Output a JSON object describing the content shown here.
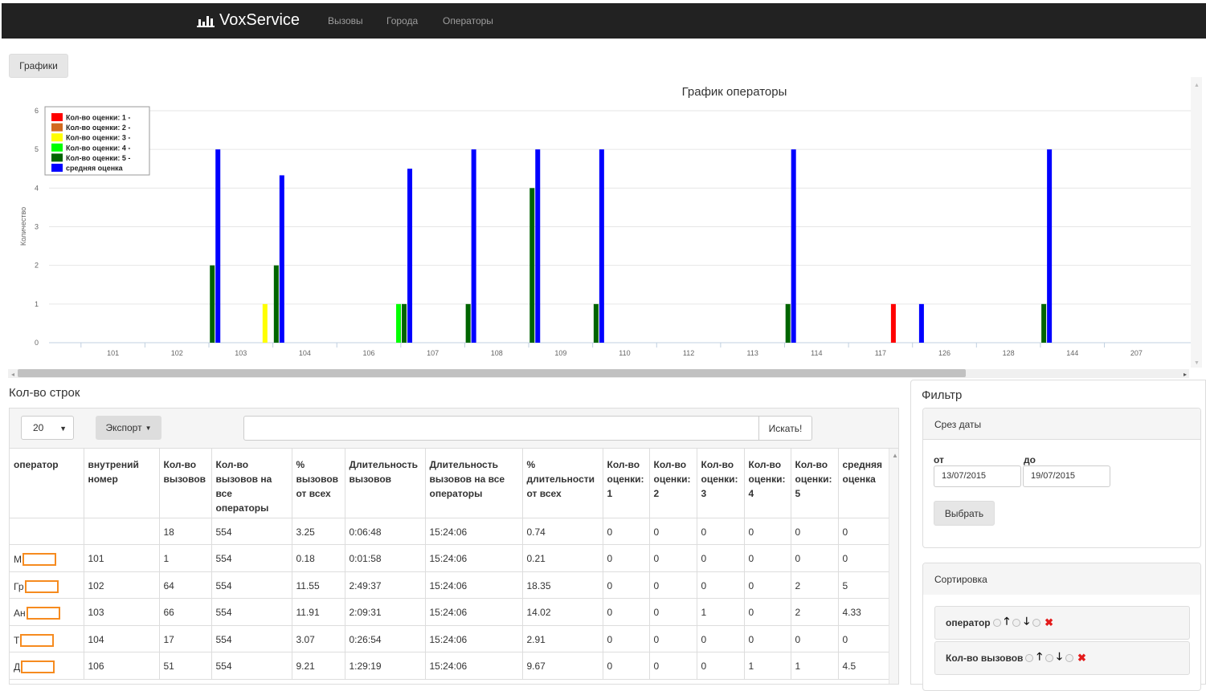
{
  "navbar": {
    "brand": "VoxService",
    "items": [
      "Вызовы",
      "Города",
      "Операторы"
    ]
  },
  "charts_button": "Графики",
  "chart_data": {
    "type": "bar",
    "title": "График операторы",
    "ylabel": "Количество",
    "xlabel": "",
    "ylim": [
      0,
      6
    ],
    "yticks": [
      0,
      1,
      2,
      3,
      4,
      5,
      6
    ],
    "grid": true,
    "legend_position": "top-left",
    "categories": [
      "101",
      "102",
      "103",
      "104",
      "106",
      "107",
      "108",
      "109",
      "110",
      "112",
      "113",
      "114",
      "117",
      "126",
      "128",
      "144",
      "207"
    ],
    "series": [
      {
        "name": "Кол-во оценки: 1 -",
        "color": "#ff0000",
        "values": [
          0,
          0,
          0,
          0,
          0,
          0,
          0,
          0,
          0,
          0,
          0,
          0,
          1,
          0,
          0,
          0,
          0
        ]
      },
      {
        "name": "Кол-во оценки: 2 -",
        "color": "#d2691e",
        "values": [
          0,
          0,
          0,
          0,
          0,
          0,
          0,
          0,
          0,
          0,
          0,
          0,
          0,
          0,
          0,
          0,
          0
        ]
      },
      {
        "name": "Кол-во оценки: 3 -",
        "color": "#ffff00",
        "values": [
          0,
          0,
          1,
          0,
          0,
          0,
          0,
          0,
          0,
          0,
          0,
          0,
          0,
          0,
          0,
          0,
          0
        ]
      },
      {
        "name": "Кол-во оценки: 4 -",
        "color": "#00ff00",
        "values": [
          0,
          0,
          0,
          0,
          1,
          0,
          0,
          0,
          0,
          0,
          0,
          0,
          0,
          0,
          0,
          0,
          0
        ]
      },
      {
        "name": "Кол-во оценки: 5 -",
        "color": "#006400",
        "values": [
          0,
          2,
          2,
          0,
          1,
          1,
          4,
          1,
          0,
          0,
          1,
          0,
          0,
          0,
          1,
          0,
          0
        ]
      },
      {
        "name": "средняя оценка",
        "color": "#0000ff",
        "values": [
          0,
          5,
          4.33,
          0,
          4.5,
          5,
          5,
          5,
          0,
          0,
          5,
          0,
          1,
          0,
          5,
          0,
          0
        ]
      }
    ]
  },
  "rows_title": "Кол-во строк",
  "toolbar": {
    "page_size": "20",
    "export_label": "Экспорт",
    "search_label": "Искать!"
  },
  "table": {
    "headers": [
      "оператор",
      "внутрений номер",
      "Кол-во вызовов",
      "Кол-во вызовов на все операторы",
      "% вызовов от всех",
      "Длительность вызовов",
      "Длительность вызовов на все операторы",
      "% длительности от всех",
      "Кол-во оценки: 1",
      "Кол-во оценки: 2",
      "Кол-во оценки: 3",
      "Кол-во оценки: 4",
      "Кол-во оценки: 5",
      "средняя оценка"
    ],
    "rows": [
      {
        "operator": "",
        "redacted": false,
        "cells": [
          "",
          "18",
          "554",
          "3.25",
          "0:06:48",
          "15:24:06",
          "0.74",
          "0",
          "0",
          "0",
          "0",
          "0",
          "0"
        ]
      },
      {
        "operator": "М",
        "redacted": true,
        "cells": [
          "101",
          "1",
          "554",
          "0.18",
          "0:01:58",
          "15:24:06",
          "0.21",
          "0",
          "0",
          "0",
          "0",
          "0",
          "0"
        ]
      },
      {
        "operator": "Гр",
        "redacted": true,
        "cells": [
          "102",
          "64",
          "554",
          "11.55",
          "2:49:37",
          "15:24:06",
          "18.35",
          "0",
          "0",
          "0",
          "0",
          "2",
          "5"
        ]
      },
      {
        "operator": "Ан",
        "redacted": true,
        "cells": [
          "103",
          "66",
          "554",
          "11.91",
          "2:09:31",
          "15:24:06",
          "14.02",
          "0",
          "0",
          "1",
          "0",
          "2",
          "4.33"
        ]
      },
      {
        "operator": "Т",
        "redacted": true,
        "cells": [
          "104",
          "17",
          "554",
          "3.07",
          "0:26:54",
          "15:24:06",
          "2.91",
          "0",
          "0",
          "0",
          "0",
          "0",
          "0"
        ]
      },
      {
        "operator": "Д",
        "redacted": true,
        "cells": [
          "106",
          "51",
          "554",
          "9.21",
          "1:29:19",
          "15:24:06",
          "9.67",
          "0",
          "0",
          "0",
          "1",
          "1",
          "4.5"
        ]
      }
    ]
  },
  "filter": {
    "title": "Фильтр",
    "date_panel_title": "Срез даты",
    "from_label": "от",
    "to_label": "до",
    "from_value": "13/07/2015",
    "to_value": "19/07/2015",
    "select_label": "Выбрать",
    "sort_panel_title": "Сортировка",
    "sort_items": [
      "оператор",
      "Кол-во вызовов"
    ]
  }
}
